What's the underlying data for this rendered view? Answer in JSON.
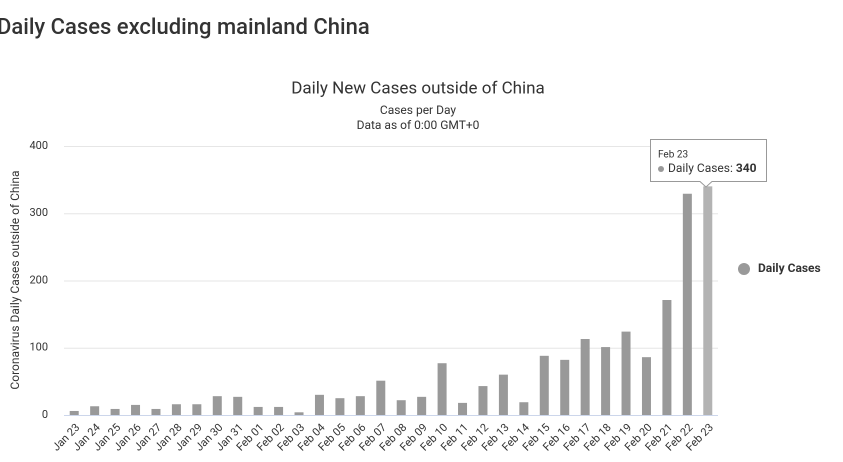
{
  "page_title": "Daily Cases excluding mainland China",
  "chart_data": {
    "type": "bar",
    "title": "Daily New Cases outside of China",
    "subtitles": [
      "Cases per Day",
      "Data as of 0:00 GMT+0"
    ],
    "y_label": "Coronavirus Daily Cases outside of China",
    "categories": [
      "Jan 23",
      "Jan 24",
      "Jan 25",
      "Jan 26",
      "Jan 27",
      "Jan 28",
      "Jan 29",
      "Jan 30",
      "Jan 31",
      "Feb 01",
      "Feb 02",
      "Feb 03",
      "Feb 04",
      "Feb 05",
      "Feb 06",
      "Feb 07",
      "Feb 08",
      "Feb 09",
      "Feb 10",
      "Feb 11",
      "Feb 12",
      "Feb 13",
      "Feb 14",
      "Feb 15",
      "Feb 16",
      "Feb 17",
      "Feb 18",
      "Feb 19",
      "Feb 20",
      "Feb 21",
      "Feb 22",
      "Feb 23"
    ],
    "series": [
      {
        "name": "Daily Cases",
        "color": "#999999",
        "values": [
          6,
          13,
          9,
          15,
          9,
          16,
          16,
          28,
          27,
          12,
          12,
          4,
          30,
          25,
          28,
          51,
          22,
          27,
          77,
          18,
          43,
          60,
          19,
          88,
          82,
          113,
          101,
          124,
          86,
          171,
          329,
          340
        ]
      }
    ],
    "ylim": [
      0,
      400
    ],
    "yticks": [
      0,
      100,
      200,
      300,
      400
    ],
    "grid": true,
    "legend": "right",
    "highlight_index": 31,
    "highlight_color": "#b3b3b3"
  }
}
